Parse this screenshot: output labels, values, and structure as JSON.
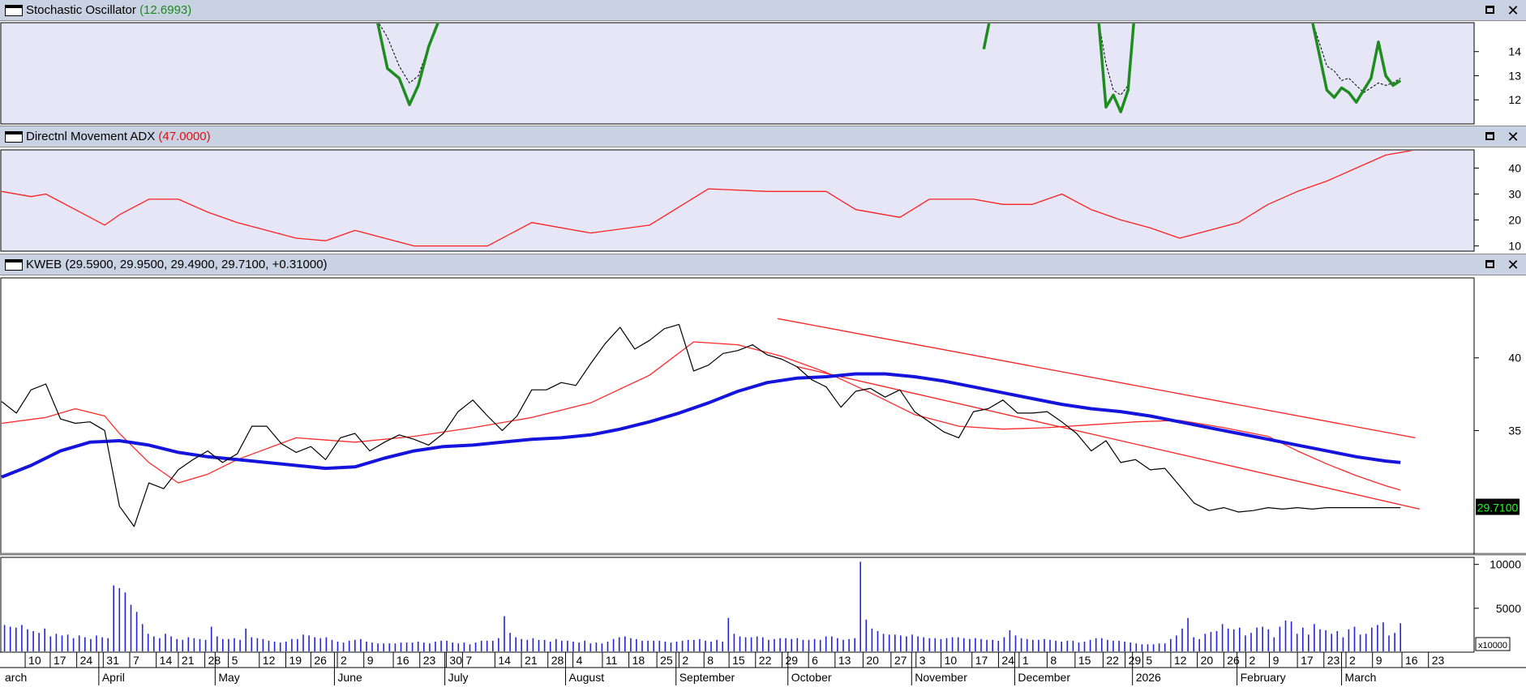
{
  "panels": {
    "stochastic": {
      "name": "Stochastic Oscillator",
      "value": "(12.6993)"
    },
    "adx": {
      "name": "Directnl Movement ADX",
      "value": "(47.0000)"
    },
    "price": {
      "name": "KWEB",
      "value": "(29.5900, 29.9500, 29.4900, 29.7100, +0.31000)"
    }
  },
  "price_badge": "29.7100",
  "volume_unit": "x10000",
  "colors": {
    "pane_background": "#e6e6f7",
    "price_line": "#000000",
    "ma_fast": "#ff2a2a",
    "ma_slow": "#1414dc",
    "channel": "#ff2020",
    "stochastic_k": "#1e8c1e",
    "adx_line": "#ff2020",
    "volume_bars": "#2323d8",
    "badge_bg": "#000000",
    "badge_text": "#22ff22"
  },
  "icons": [
    "pane-icon",
    "maximize-icon",
    "close-icon"
  ],
  "chart_data": [
    {
      "type": "line",
      "name": "Stochastic Oscillator",
      "yticks": [
        12,
        13,
        14
      ],
      "ylim": [
        11,
        15.2
      ],
      "segments": [
        {
          "x": [
            0.255,
            0.262,
            0.27,
            0.277,
            0.283,
            0.29,
            0.297
          ],
          "k": [
            15.3,
            13.3,
            12.9,
            11.8,
            12.6,
            14.2,
            15.3
          ],
          "d": [
            15.3,
            14.6,
            13.4,
            12.7,
            13.0,
            14.2,
            15.3
          ]
        },
        {
          "x": [
            0.667,
            0.671
          ],
          "k": [
            14.1,
            15.3
          ]
        },
        {
          "x": [
            0.745,
            0.75,
            0.755,
            0.76,
            0.765,
            0.769
          ],
          "k": [
            15.3,
            11.7,
            12.2,
            11.5,
            12.4,
            15.3
          ],
          "d": [
            15.3,
            13.5,
            12.4,
            12.2,
            12.6,
            15.3
          ]
        },
        {
          "x": [
            0.89,
            0.9,
            0.905,
            0.91,
            0.915,
            0.92,
            0.925,
            0.93,
            0.935,
            0.94,
            0.945,
            0.95
          ],
          "k": [
            15.3,
            12.4,
            12.1,
            12.5,
            12.3,
            11.9,
            12.4,
            12.9,
            14.4,
            13.0,
            12.6,
            12.8
          ],
          "d": [
            15.3,
            13.4,
            13.2,
            12.8,
            12.9,
            12.6,
            12.3,
            12.5,
            12.7,
            12.6,
            12.7,
            12.9
          ]
        }
      ]
    },
    {
      "type": "line",
      "name": "Directnl Movement ADX",
      "yticks": [
        10,
        20,
        30,
        40
      ],
      "ylim": [
        8,
        47
      ],
      "x": [
        0.0,
        0.02,
        0.03,
        0.05,
        0.07,
        0.08,
        0.1,
        0.12,
        0.14,
        0.16,
        0.18,
        0.2,
        0.22,
        0.24,
        0.26,
        0.28,
        0.3,
        0.33,
        0.36,
        0.4,
        0.44,
        0.48,
        0.52,
        0.56,
        0.58,
        0.61,
        0.63,
        0.66,
        0.68,
        0.7,
        0.72,
        0.74,
        0.76,
        0.78,
        0.8,
        0.82,
        0.84,
        0.86,
        0.88,
        0.9,
        0.92,
        0.94,
        0.96,
        0.98,
        0.99,
        1.0
      ],
      "y": [
        31,
        29,
        30,
        24,
        18,
        22,
        28,
        28,
        23,
        19,
        16,
        13,
        12,
        16,
        13,
        10,
        10,
        10,
        19,
        15,
        18,
        32,
        31,
        31,
        24,
        21,
        28,
        28,
        26,
        26,
        30,
        24,
        20,
        17,
        13,
        16,
        19,
        26,
        31,
        35,
        40,
        45,
        47,
        47,
        47,
        47
      ]
    },
    {
      "type": "line",
      "name": "KWEB",
      "yticks": [
        35,
        40
      ],
      "ylim": [
        26.5,
        45.5
      ],
      "series": [
        {
          "name": "KWEB",
          "x": [
            0.0,
            0.01,
            0.02,
            0.03,
            0.04,
            0.05,
            0.06,
            0.07,
            0.08,
            0.09,
            0.1,
            0.11,
            0.12,
            0.13,
            0.14,
            0.15,
            0.16,
            0.17,
            0.18,
            0.19,
            0.2,
            0.21,
            0.22,
            0.23,
            0.24,
            0.25,
            0.26,
            0.27,
            0.28,
            0.29,
            0.3,
            0.31,
            0.32,
            0.33,
            0.34,
            0.35,
            0.36,
            0.37,
            0.38,
            0.39,
            0.4,
            0.41,
            0.42,
            0.43,
            0.44,
            0.45,
            0.46,
            0.47,
            0.48,
            0.49,
            0.5,
            0.51,
            0.52,
            0.53,
            0.54,
            0.55,
            0.56,
            0.57,
            0.58,
            0.59,
            0.6,
            0.61,
            0.62,
            0.63,
            0.64,
            0.65,
            0.66,
            0.67,
            0.68,
            0.69,
            0.7,
            0.71,
            0.72,
            0.73,
            0.74,
            0.75,
            0.76,
            0.77,
            0.78,
            0.79,
            0.8,
            0.81,
            0.82,
            0.83,
            0.84,
            0.85,
            0.86,
            0.87,
            0.88,
            0.89,
            0.9,
            0.91,
            0.92,
            0.93,
            0.94,
            0.95
          ],
          "y": [
            37.0,
            36.2,
            37.8,
            38.2,
            35.8,
            35.5,
            35.6,
            35.0,
            29.8,
            28.4,
            31.4,
            31.0,
            32.3,
            33.0,
            33.6,
            32.8,
            33.4,
            35.3,
            35.3,
            34.1,
            33.5,
            33.9,
            33.0,
            34.5,
            34.8,
            33.6,
            34.2,
            34.7,
            34.4,
            34.0,
            34.8,
            36.3,
            37.1,
            36.0,
            35.0,
            36.0,
            37.8,
            37.8,
            38.3,
            38.1,
            39.6,
            41.0,
            42.1,
            40.6,
            41.2,
            42.0,
            42.3,
            39.1,
            39.5,
            40.3,
            40.5,
            40.9,
            40.2,
            39.9,
            39.4,
            38.5,
            38.0,
            36.6,
            37.7,
            37.9,
            37.3,
            37.8,
            36.3,
            35.6,
            34.9,
            34.5,
            36.3,
            36.5,
            37.1,
            36.2,
            36.2,
            36.3,
            35.6,
            34.8,
            33.6,
            34.3,
            32.8,
            33.0,
            32.3,
            32.4,
            31.2,
            30.0,
            29.5,
            29.7,
            29.4,
            29.5,
            29.7,
            29.6,
            29.7,
            29.6,
            29.7,
            29.7,
            29.7,
            29.7,
            29.7,
            29.7
          ]
        },
        {
          "name": "MA fast",
          "x": [
            0.0,
            0.03,
            0.05,
            0.07,
            0.08,
            0.1,
            0.12,
            0.14,
            0.16,
            0.2,
            0.24,
            0.28,
            0.32,
            0.36,
            0.4,
            0.44,
            0.47,
            0.5,
            0.53,
            0.56,
            0.59,
            0.62,
            0.65,
            0.68,
            0.71,
            0.74,
            0.77,
            0.8,
            0.83,
            0.86,
            0.88,
            0.9,
            0.92,
            0.94,
            0.95
          ],
          "y": [
            35.5,
            35.9,
            36.5,
            36.0,
            34.8,
            32.8,
            31.4,
            32.0,
            33.0,
            34.5,
            34.2,
            34.6,
            35.2,
            35.9,
            36.9,
            38.8,
            41.1,
            40.9,
            40.1,
            39.0,
            37.6,
            36.1,
            35.3,
            35.1,
            35.2,
            35.4,
            35.6,
            35.7,
            35.2,
            34.6,
            33.6,
            32.7,
            31.9,
            31.2,
            30.9
          ]
        },
        {
          "name": "MA slow",
          "x": [
            0.0,
            0.02,
            0.04,
            0.06,
            0.08,
            0.1,
            0.12,
            0.14,
            0.16,
            0.18,
            0.2,
            0.22,
            0.24,
            0.26,
            0.28,
            0.3,
            0.32,
            0.34,
            0.36,
            0.38,
            0.4,
            0.42,
            0.44,
            0.46,
            0.48,
            0.5,
            0.52,
            0.54,
            0.56,
            0.58,
            0.6,
            0.62,
            0.64,
            0.66,
            0.68,
            0.7,
            0.72,
            0.74,
            0.76,
            0.78,
            0.8,
            0.82,
            0.84,
            0.86,
            0.88,
            0.9,
            0.92,
            0.94,
            0.95
          ],
          "y": [
            31.8,
            32.6,
            33.6,
            34.2,
            34.3,
            34.0,
            33.5,
            33.2,
            33.0,
            32.8,
            32.6,
            32.4,
            32.5,
            33.1,
            33.6,
            33.9,
            34.0,
            34.2,
            34.4,
            34.5,
            34.7,
            35.1,
            35.6,
            36.2,
            36.9,
            37.7,
            38.3,
            38.6,
            38.7,
            38.9,
            38.9,
            38.7,
            38.4,
            38.0,
            37.6,
            37.2,
            36.8,
            36.5,
            36.3,
            36.0,
            35.6,
            35.2,
            34.8,
            34.4,
            34.0,
            33.6,
            33.2,
            32.9,
            32.8
          ]
        },
        {
          "name": "channel upper",
          "x": [
            0.527,
            0.96
          ],
          "y": [
            42.7,
            34.5
          ]
        },
        {
          "name": "channel lower",
          "x": [
            0.54,
            0.963
          ],
          "y": [
            39.4,
            29.6
          ]
        }
      ]
    },
    {
      "type": "bar",
      "name": "Volume",
      "yticks": [
        5000,
        10000
      ],
      "ylim": [
        0,
        10800
      ],
      "unit": "x10000",
      "values": [
        3100,
        2900,
        2800,
        3100,
        2600,
        2400,
        2200,
        2700,
        1800,
        2100,
        1900,
        2000,
        1600,
        1900,
        1700,
        1500,
        1900,
        1700,
        1600,
        7600,
        7300,
        6800,
        5400,
        4600,
        3200,
        2100,
        1800,
        1600,
        2100,
        1800,
        1500,
        1400,
        1700,
        1600,
        1500,
        1400,
        2900,
        1800,
        1500,
        1500,
        1600,
        1400,
        2700,
        1700,
        1600,
        1500,
        1300,
        1200,
        1100,
        1200,
        1500,
        1500,
        2000,
        1900,
        1700,
        1600,
        1700,
        1400,
        1200,
        1100,
        1300,
        1400,
        1500,
        1200,
        1100,
        1000,
        1000,
        1000,
        1000,
        1100,
        1100,
        1100,
        1200,
        1100,
        1000,
        1200,
        1300,
        1300,
        1100,
        1000,
        1100,
        900,
        1100,
        1300,
        1300,
        1300,
        1600,
        4100,
        2200,
        1700,
        1500,
        1400,
        1600,
        1400,
        1400,
        1200,
        1500,
        1300,
        1300,
        1200,
        1100,
        1300,
        1000,
        1100,
        1000,
        1200,
        1500,
        1700,
        1800,
        1600,
        1500,
        1300,
        1300,
        1300,
        1300,
        1200,
        1100,
        1200,
        1300,
        1400,
        1400,
        1500,
        1300,
        1200,
        1400,
        1200,
        3900,
        2100,
        1800,
        1700,
        1700,
        1800,
        1700,
        1400,
        1500,
        1600,
        1600,
        1500,
        1600,
        1400,
        1400,
        1500,
        1400,
        1800,
        1800,
        1600,
        1400,
        1500,
        1600,
        10300,
        3700,
        2700,
        2400,
        2100,
        2000,
        2000,
        1900,
        1800,
        2000,
        1800,
        1700,
        1600,
        1600,
        1500,
        1600,
        1700,
        1700,
        1600,
        1500,
        1600,
        1500,
        1400,
        1400,
        1300,
        1700,
        2500,
        1900,
        1600,
        1500,
        1400,
        1400,
        1500,
        1400,
        1300,
        1200,
        1300,
        1300,
        1100,
        1200,
        1400,
        1600,
        1600,
        1400,
        1300,
        1300,
        1200,
        1100,
        1000,
        900,
        900,
        900,
        1000,
        1000,
        1500,
        1900,
        2700,
        3900,
        1700,
        1500,
        2100,
        2300,
        2400,
        3200,
        2700,
        2600,
        2800,
        1900,
        2200,
        2800,
        2900,
        2600,
        1700,
        2900,
        3600,
        3500,
        2100,
        2800,
        2000,
        3200,
        2600,
        2500,
        2100,
        2400,
        1700,
        2600,
        2900,
        2000,
        2100,
        2800,
        3100,
        3400,
        1900,
        2200,
        3300
      ]
    }
  ],
  "x_axis": {
    "days": [
      {
        "x": 0.016,
        "label": "10"
      },
      {
        "x": 0.033,
        "label": "17"
      },
      {
        "x": 0.051,
        "label": "24"
      },
      {
        "x": 0.069,
        "label": "31"
      },
      {
        "x": 0.087,
        "label": "7"
      },
      {
        "x": 0.105,
        "label": "14"
      },
      {
        "x": 0.12,
        "label": "21"
      },
      {
        "x": 0.138,
        "label": "28"
      },
      {
        "x": 0.154,
        "label": "5"
      },
      {
        "x": 0.175,
        "label": "12"
      },
      {
        "x": 0.193,
        "label": "19"
      },
      {
        "x": 0.21,
        "label": "26"
      },
      {
        "x": 0.228,
        "label": "2"
      },
      {
        "x": 0.246,
        "label": "9"
      },
      {
        "x": 0.266,
        "label": "16"
      },
      {
        "x": 0.284,
        "label": "23"
      },
      {
        "x": 0.302,
        "label": "30"
      },
      {
        "x": 0.313,
        "label": "7"
      },
      {
        "x": 0.335,
        "label": "14"
      },
      {
        "x": 0.353,
        "label": "21"
      },
      {
        "x": 0.371,
        "label": "28"
      },
      {
        "x": 0.388,
        "label": "4"
      },
      {
        "x": 0.408,
        "label": "11"
      },
      {
        "x": 0.426,
        "label": "18"
      },
      {
        "x": 0.445,
        "label": "25"
      },
      {
        "x": 0.46,
        "label": "2"
      },
      {
        "x": 0.477,
        "label": "8"
      },
      {
        "x": 0.494,
        "label": "15"
      },
      {
        "x": 0.512,
        "label": "22"
      },
      {
        "x": 0.53,
        "label": "29"
      },
      {
        "x": 0.548,
        "label": "6"
      },
      {
        "x": 0.566,
        "label": "13"
      },
      {
        "x": 0.585,
        "label": "20"
      },
      {
        "x": 0.604,
        "label": "27"
      },
      {
        "x": 0.621,
        "label": "3"
      },
      {
        "x": 0.638,
        "label": "10"
      },
      {
        "x": 0.659,
        "label": "17"
      },
      {
        "x": 0.677,
        "label": "24"
      },
      {
        "x": 0.691,
        "label": "1"
      },
      {
        "x": 0.71,
        "label": "8"
      },
      {
        "x": 0.729,
        "label": "15"
      },
      {
        "x": 0.748,
        "label": "22"
      },
      {
        "x": 0.763,
        "label": "29"
      },
      {
        "x": 0.775,
        "label": "5"
      },
      {
        "x": 0.794,
        "label": "12"
      },
      {
        "x": 0.812,
        "label": "20"
      },
      {
        "x": 0.83,
        "label": "26"
      },
      {
        "x": 0.845,
        "label": "2"
      },
      {
        "x": 0.861,
        "label": "9"
      },
      {
        "x": 0.88,
        "label": "17"
      },
      {
        "x": 0.898,
        "label": "23"
      },
      {
        "x": 0.913,
        "label": "2"
      },
      {
        "x": 0.931,
        "label": "9"
      },
      {
        "x": 0.951,
        "label": "16"
      },
      {
        "x": 0.969,
        "label": "23"
      }
    ],
    "months": [
      {
        "x": 0.0,
        "label": "arch"
      },
      {
        "x": 0.066,
        "label": "April"
      },
      {
        "x": 0.145,
        "label": "May"
      },
      {
        "x": 0.226,
        "label": "June"
      },
      {
        "x": 0.301,
        "label": "July"
      },
      {
        "x": 0.383,
        "label": "August"
      },
      {
        "x": 0.458,
        "label": "September"
      },
      {
        "x": 0.534,
        "label": "October"
      },
      {
        "x": 0.618,
        "label": "November"
      },
      {
        "x": 0.688,
        "label": "December"
      },
      {
        "x": 0.768,
        "label": "2026"
      },
      {
        "x": 0.839,
        "label": "February"
      },
      {
        "x": 0.91,
        "label": "March"
      }
    ]
  }
}
